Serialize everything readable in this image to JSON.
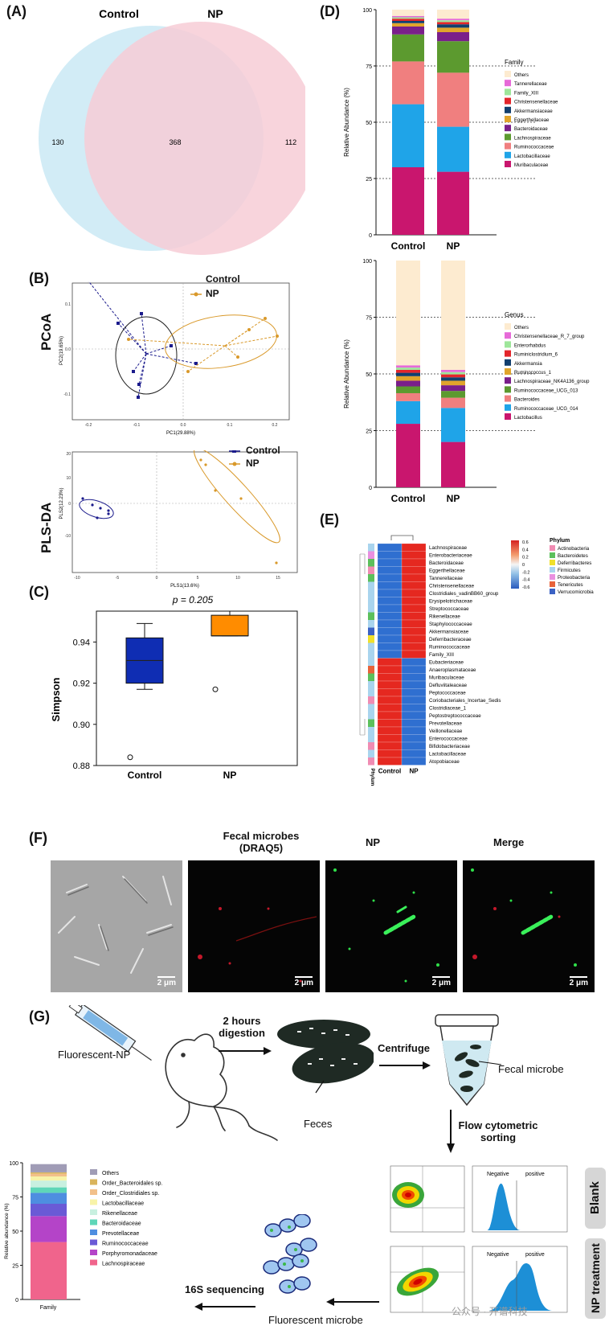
{
  "panels": {
    "A": "(A)",
    "B": "(B)",
    "C": "(C)",
    "D": "(D)",
    "E": "(E)",
    "F": "(F)",
    "G": "(G)"
  },
  "venn": {
    "set_a": "Control",
    "set_b": "NP",
    "left": "130",
    "middle": "368",
    "right": "112",
    "colors": {
      "control": "#cdeaf5",
      "np": "#f7cdd6"
    }
  },
  "pcoa": {
    "row_label": "PCoA",
    "xlabel": "PC1(29.88%)",
    "ylabel": "PC2(19.65%)",
    "legend": [
      "Control",
      "NP"
    ]
  },
  "plsda": {
    "row_label": "PLS-DA",
    "xlabel": "PLS1(13.6%)",
    "ylabel": "PLS2(12.23%)",
    "legend": [
      "Control",
      "NP"
    ]
  },
  "colors": {
    "control": "#1b1b8c",
    "np": "#d9992a",
    "control_box": "#0f2db3",
    "np_box": "#ff8c00"
  },
  "chart_data": [
    {
      "type": "box",
      "panel": "C",
      "ylabel": "Simpson",
      "annotation": "p = 0.205",
      "ylim": [
        0.88,
        0.955
      ],
      "yticks": [
        "0.88",
        "0.90",
        "0.92",
        "0.94"
      ],
      "categories": [
        "Control",
        "NP"
      ],
      "boxes": [
        {
          "name": "Control",
          "min": 0.917,
          "q1": 0.92,
          "median": 0.931,
          "q3": 0.942,
          "max": 0.949,
          "outliers": [
            0.884
          ]
        },
        {
          "name": "NP",
          "min": 0.943,
          "q1": 0.943,
          "median": 0.943,
          "q3": 0.953,
          "max": 0.955,
          "outliers": [
            0.917
          ]
        }
      ]
    },
    {
      "type": "bar",
      "stacked": true,
      "panel": "D1",
      "ylabel": "Relative Abundance (%)",
      "legend_title": "Family",
      "categories": [
        "Control",
        "NP"
      ],
      "ylim": [
        0,
        100
      ],
      "yticks": [
        "0",
        "25",
        "50",
        "75",
        "100"
      ],
      "series": [
        {
          "name": "Muribaculaceae",
          "color": "#c9166e",
          "values": [
            30,
            28
          ]
        },
        {
          "name": "Lactobacillaceae",
          "color": "#1fa4e8",
          "values": [
            28,
            20
          ]
        },
        {
          "name": "Ruminococcaceae",
          "color": "#f07f7f",
          "values": [
            19,
            24
          ]
        },
        {
          "name": "Lachnospiraceae",
          "color": "#5c9a2f",
          "values": [
            12,
            14
          ]
        },
        {
          "name": "Bacteroidaceae",
          "color": "#7a1f8a",
          "values": [
            3.5,
            4
          ]
        },
        {
          "name": "Eggerthellaceae",
          "color": "#e0a42c",
          "values": [
            1.5,
            2
          ]
        },
        {
          "name": "Akkermansiaceae",
          "color": "#123f6e",
          "values": [
            1,
            1.5
          ]
        },
        {
          "name": "Christensenellaceae",
          "color": "#e3262b",
          "values": [
            1,
            1
          ]
        },
        {
          "name": "Family_XIII",
          "color": "#9ee69a",
          "values": [
            0.6,
            0.8
          ]
        },
        {
          "name": "Tannerellaceae",
          "color": "#e66ad8",
          "values": [
            0.6,
            0.7
          ]
        },
        {
          "name": "Others",
          "color": "#fdebd0",
          "values": [
            2.8,
            4
          ]
        }
      ]
    },
    {
      "type": "bar",
      "stacked": true,
      "panel": "D2",
      "ylabel": "Relative Abundance (%)",
      "legend_title": "Genus",
      "categories": [
        "Control",
        "NP"
      ],
      "ylim": [
        0,
        100
      ],
      "yticks": [
        "0",
        "25",
        "50",
        "75",
        "100"
      ],
      "series": [
        {
          "name": "Lactobacillus",
          "color": "#c9166e",
          "values": [
            28,
            20
          ]
        },
        {
          "name": "Ruminococcaceae_UCG_014",
          "color": "#1fa4e8",
          "values": [
            10,
            15
          ]
        },
        {
          "name": "Bacteroides",
          "color": "#f07f7f",
          "values": [
            3.5,
            4.5
          ]
        },
        {
          "name": "Ruminococcaceae_UCG_013",
          "color": "#5c9a2f",
          "values": [
            3,
            3
          ]
        },
        {
          "name": "Lachnospiraceae_NK4A136_group",
          "color": "#7a1f8a",
          "values": [
            2.5,
            2.5
          ]
        },
        {
          "name": "Ruminococcus_1",
          "color": "#e0a42c",
          "values": [
            2,
            2
          ]
        },
        {
          "name": "Akkermansia",
          "color": "#123f6e",
          "values": [
            1.5,
            1.5
          ]
        },
        {
          "name": "Ruminiclostridium_6",
          "color": "#e3262b",
          "values": [
            1.3,
            1.3
          ]
        },
        {
          "name": "Enterorhabdus",
          "color": "#9ee69a",
          "values": [
            1,
            1
          ]
        },
        {
          "name": "Christensenellaceae_R_7_group",
          "color": "#e66ad8",
          "values": [
            1,
            1
          ]
        },
        {
          "name": "Others",
          "color": "#fdebd0",
          "values": [
            46.2,
            48.2
          ]
        }
      ]
    },
    {
      "type": "heatmap",
      "panel": "E",
      "columns": [
        "Control",
        "NP"
      ],
      "phylum_label": "Phylum",
      "scale_ticks": [
        "0.6",
        "0.4",
        "0.2",
        "0",
        "-0.2",
        "-0.4",
        "-0.6"
      ],
      "rows": [
        {
          "name": "Lachnospiraceae",
          "control": -0.6,
          "np": 0.6,
          "phylum": "Firmicutes"
        },
        {
          "name": "Enterobacteriaceae",
          "control": -0.6,
          "np": 0.6,
          "phylum": "Proteobacteria"
        },
        {
          "name": "Bacteroidaceae",
          "control": -0.6,
          "np": 0.6,
          "phylum": "Bacteroidetes"
        },
        {
          "name": "Eggerthellaceae",
          "control": -0.6,
          "np": 0.6,
          "phylum": "Actinobacteria"
        },
        {
          "name": "Tannerellaceae",
          "control": -0.6,
          "np": 0.6,
          "phylum": "Bacteroidetes"
        },
        {
          "name": "Christensenellaceae",
          "control": -0.6,
          "np": 0.6,
          "phylum": "Firmicutes"
        },
        {
          "name": "Clostridiales_vadinBB60_group",
          "control": -0.6,
          "np": 0.6,
          "phylum": "Firmicutes"
        },
        {
          "name": "Erysipelotrichaceae",
          "control": -0.6,
          "np": 0.6,
          "phylum": "Firmicutes"
        },
        {
          "name": "Streptococcaceae",
          "control": -0.6,
          "np": 0.6,
          "phylum": "Firmicutes"
        },
        {
          "name": "Rikenellaceae",
          "control": -0.6,
          "np": 0.6,
          "phylum": "Bacteroidetes"
        },
        {
          "name": "Staphylococcaceae",
          "control": -0.6,
          "np": 0.6,
          "phylum": "Firmicutes"
        },
        {
          "name": "Akkermansiaceae",
          "control": -0.6,
          "np": 0.6,
          "phylum": "Verrucomicrobia"
        },
        {
          "name": "Deferribacteraceae",
          "control": -0.6,
          "np": 0.6,
          "phylum": "Deferribacteres"
        },
        {
          "name": "Ruminococcaceae",
          "control": -0.6,
          "np": 0.6,
          "phylum": "Firmicutes"
        },
        {
          "name": "Family_XIII",
          "control": -0.6,
          "np": 0.6,
          "phylum": "Firmicutes"
        },
        {
          "name": "Eubacteriaceae",
          "control": 0.6,
          "np": -0.6,
          "phylum": "Firmicutes"
        },
        {
          "name": "Anaeroplasmataceae",
          "control": 0.6,
          "np": -0.6,
          "phylum": "Tenericutes"
        },
        {
          "name": "Muribaculaceae",
          "control": 0.6,
          "np": -0.6,
          "phylum": "Bacteroidetes"
        },
        {
          "name": "Defluviitaleaceae",
          "control": 0.6,
          "np": -0.6,
          "phylum": "Firmicutes"
        },
        {
          "name": "Peptococcaceae",
          "control": 0.6,
          "np": -0.6,
          "phylum": "Firmicutes"
        },
        {
          "name": "Coriobacteriales_Incertae_Sedis",
          "control": 0.6,
          "np": -0.6,
          "phylum": "Actinobacteria"
        },
        {
          "name": "Clostridiaceae_1",
          "control": 0.6,
          "np": -0.6,
          "phylum": "Firmicutes"
        },
        {
          "name": "Peptostreptococcaceae",
          "control": 0.6,
          "np": -0.6,
          "phylum": "Firmicutes"
        },
        {
          "name": "Prevotellaceae",
          "control": 0.6,
          "np": -0.6,
          "phylum": "Bacteroidetes"
        },
        {
          "name": "Veillonellaceae",
          "control": 0.6,
          "np": -0.6,
          "phylum": "Firmicutes"
        },
        {
          "name": "Enterococcaceae",
          "control": 0.6,
          "np": -0.6,
          "phylum": "Firmicutes"
        },
        {
          "name": "Bifidobacteriaceae",
          "control": 0.6,
          "np": -0.6,
          "phylum": "Actinobacteria"
        },
        {
          "name": "Lactobacillaceae",
          "control": 0.6,
          "np": -0.6,
          "phylum": "Firmicutes"
        },
        {
          "name": "Atopobiaceae",
          "control": 0.6,
          "np": -0.6,
          "phylum": "Actinobacteria"
        }
      ],
      "phyla": [
        {
          "name": "Actinobacteria",
          "color": "#f08cb3"
        },
        {
          "name": "Bacteroidetes",
          "color": "#5cc05c"
        },
        {
          "name": "Deferribacteres",
          "color": "#f0e02a"
        },
        {
          "name": "Firmicutes",
          "color": "#a9d4ee"
        },
        {
          "name": "Proteobacteria",
          "color": "#e990e0"
        },
        {
          "name": "Tenericutes",
          "color": "#e8633a"
        },
        {
          "name": "Verrucomicrobia",
          "color": "#3b62c4"
        }
      ]
    },
    {
      "type": "bar",
      "stacked": true,
      "panel": "G",
      "ylabel": "Relative abundance (%)",
      "xlabel": "Family",
      "ylim": [
        0,
        100
      ],
      "yticks": [
        "0",
        "25",
        "50",
        "75",
        "100"
      ],
      "series": [
        {
          "name": "Lachnospiraceae",
          "color": "#f0648c",
          "values": [
            42
          ]
        },
        {
          "name": "Porphyromonadaceae",
          "color": "#b444c8",
          "values": [
            19
          ]
        },
        {
          "name": "Ruminococcaceae",
          "color": "#6a5ad6",
          "values": [
            9
          ]
        },
        {
          "name": "Prevotellaceae",
          "color": "#4e8ee0",
          "values": [
            8
          ]
        },
        {
          "name": "Bacteroidaceae",
          "color": "#5ed6b8",
          "values": [
            4
          ]
        },
        {
          "name": "Rikenellaceae",
          "color": "#c8f0e0",
          "values": [
            5
          ]
        },
        {
          "name": "Lactobacillaceae",
          "color": "#f8f3a8",
          "values": [
            3
          ]
        },
        {
          "name": "Order_Clostridiales sp.",
          "color": "#f2c08a",
          "values": [
            2
          ]
        },
        {
          "name": "Order_Bacteroidales sp.",
          "color": "#d9b45c",
          "values": [
            1
          ]
        },
        {
          "name": "Others",
          "color": "#a09cb6",
          "values": [
            6
          ]
        }
      ]
    }
  ],
  "microscopy": {
    "title1": "Fecal microbes",
    "title2": "(DRAQ5)",
    "np": "NP",
    "merge": "Merge",
    "scale": "2 μm"
  },
  "workflow": {
    "fluorescent_np": "Fluorescent-NP",
    "digestion1": "2 hours",
    "digestion2": "digestion",
    "feces": "Feces",
    "centrifuge": "Centrifuge",
    "fecal_microbe": "Fecal microbe",
    "flow1": "Flow cytometric",
    "flow2": "sorting",
    "sequencing": "16S sequencing",
    "fluorescent_microbe": "Fluorescent microbe",
    "blank": "Blank",
    "np_treatment": "NP treatment",
    "negative": "Negative",
    "positive": "positive"
  },
  "watermark": "公众号 · 开谱科技"
}
